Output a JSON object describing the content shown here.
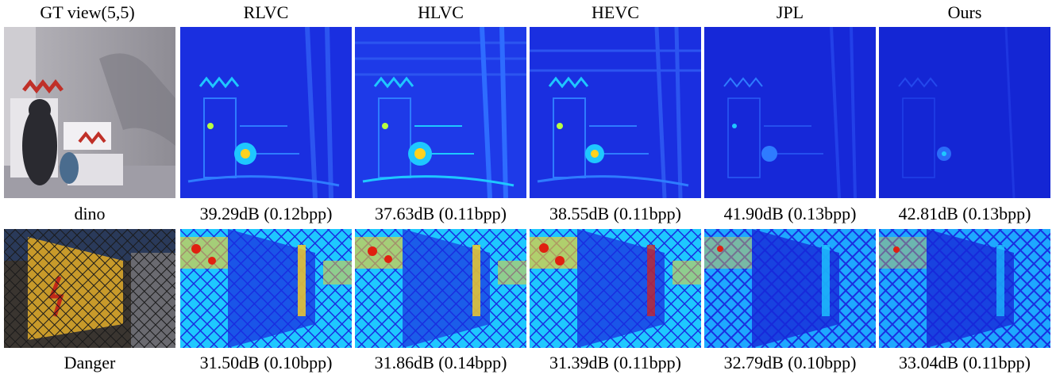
{
  "columns": [
    "GT view(5,5)",
    "RLVC",
    "HLVC",
    "HEVC",
    "JPL",
    "Ours"
  ],
  "rows": [
    {
      "name": "dino",
      "results": [
        "39.29dB (0.12bpp)",
        "37.63dB (0.11bpp)",
        "38.55dB (0.11bpp)",
        "41.90dB (0.13bpp)",
        "42.81dB (0.13bpp)"
      ],
      "error_level": [
        0.55,
        0.75,
        0.65,
        0.3,
        0.2
      ]
    },
    {
      "name": "Danger",
      "results": [
        "31.50dB (0.10bpp)",
        "31.86dB (0.14bpp)",
        "31.39dB (0.11bpp)",
        "32.79dB (0.10bpp)",
        "33.04dB (0.11bpp)"
      ],
      "error_level": [
        0.9,
        0.85,
        0.9,
        0.6,
        0.55
      ]
    }
  ],
  "colors": {
    "heat_low": "#1a2fe0",
    "heat_mid": "#1ec8ff",
    "heat_high": "#ffd21e",
    "heat_peak": "#e02010"
  }
}
